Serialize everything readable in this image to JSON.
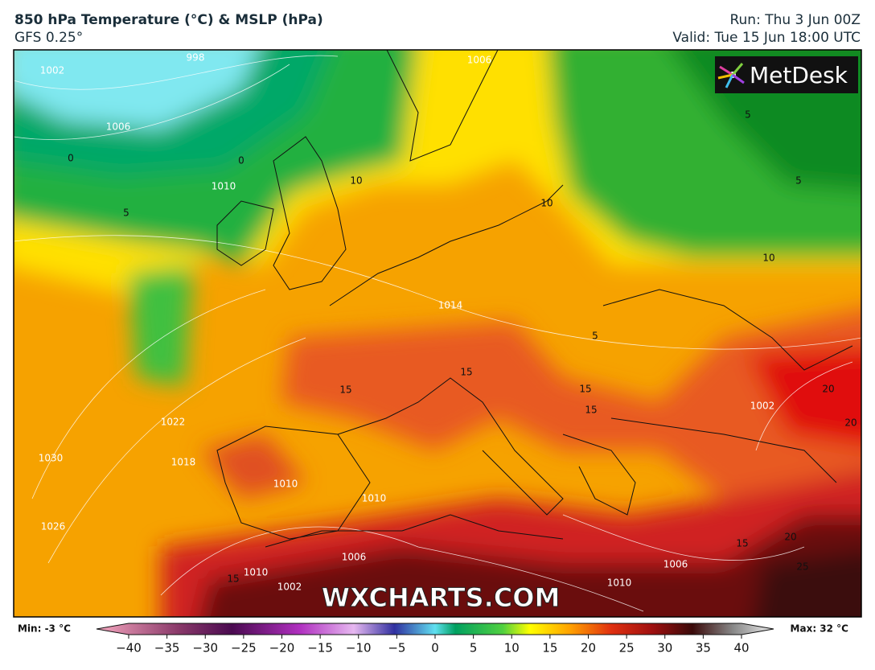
{
  "header": {
    "title": "850 hPa Temperature (°C) & MSLP (hPa)",
    "subtitle": "GFS 0.25°",
    "run": "Run: Thu 3 Jun 00Z",
    "valid": "Valid: Tue 15 Jun 18:00 UTC"
  },
  "map": {
    "logo": "MetDesk",
    "watermark": "WXCHARTS.COM",
    "contour_labels": [
      "1002",
      "998",
      "1006",
      "1010",
      "0",
      "0",
      "5",
      "10",
      "10",
      "5",
      "5",
      "10",
      "1006",
      "1014",
      "5",
      "15",
      "15",
      "15",
      "15",
      "20",
      "20",
      "1022",
      "1018",
      "1030",
      "1026",
      "1010",
      "1010",
      "1006",
      "1010",
      "1002",
      "15",
      "1006",
      "1010",
      "20",
      "15",
      "25",
      "1002"
    ]
  },
  "colorbar": {
    "min": "Min: -3 °C",
    "max": "Max: 32 °C",
    "ticks": [
      "−40",
      "−35",
      "−30",
      "−25",
      "−20",
      "−15",
      "−10",
      "−5",
      "0",
      "5",
      "10",
      "15",
      "20",
      "25",
      "30",
      "35",
      "40"
    ]
  }
}
